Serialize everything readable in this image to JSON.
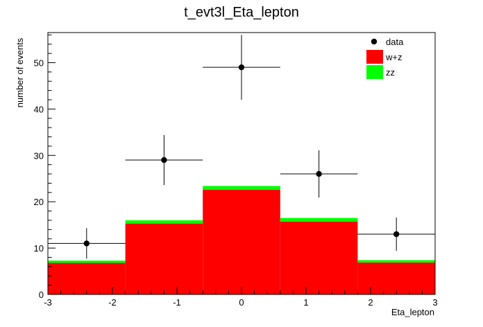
{
  "chart_data": {
    "type": "bar",
    "title": "t_evt3l_Eta_lepton",
    "xlabel": "Eta_lepton",
    "ylabel": "number of events",
    "xlim": [
      -3,
      3
    ],
    "ylim": [
      0,
      56.5
    ],
    "x_ticks": [
      "-3",
      "-2",
      "-1",
      "0",
      "1",
      "2",
      "3"
    ],
    "y_ticks": [
      "0",
      "10",
      "20",
      "30",
      "40",
      "50"
    ],
    "bin_edges": [
      -3,
      -1.8,
      -0.6,
      0.6,
      1.8,
      3
    ],
    "stack": [
      {
        "name": "w+z",
        "color": "#ff0000",
        "values": [
          6.8,
          15.3,
          22.6,
          15.7,
          6.9
        ]
      },
      {
        "name": "zz",
        "color": "#00ff00",
        "values": [
          0.5,
          0.7,
          0.8,
          0.8,
          0.5
        ]
      }
    ],
    "data_points": {
      "name": "data",
      "color": "#000000",
      "x": [
        -2.4,
        -1.2,
        0,
        1.2,
        2.4
      ],
      "y": [
        11,
        29,
        49,
        26,
        13
      ],
      "yerr_low": [
        3.3,
        5.4,
        7.0,
        5.1,
        3.6
      ],
      "yerr_high": [
        3.3,
        5.4,
        7.0,
        5.1,
        3.6
      ],
      "xerr": [
        0.6,
        0.6,
        0.6,
        0.6,
        0.6
      ]
    },
    "legend": {
      "placement": "top-right",
      "entries": [
        {
          "label": "data",
          "kind": "marker",
          "color": "#000000"
        },
        {
          "label": "w+z",
          "kind": "fill",
          "color": "#ff0000"
        },
        {
          "label": "zz",
          "kind": "fill",
          "color": "#00ff00"
        }
      ]
    }
  }
}
